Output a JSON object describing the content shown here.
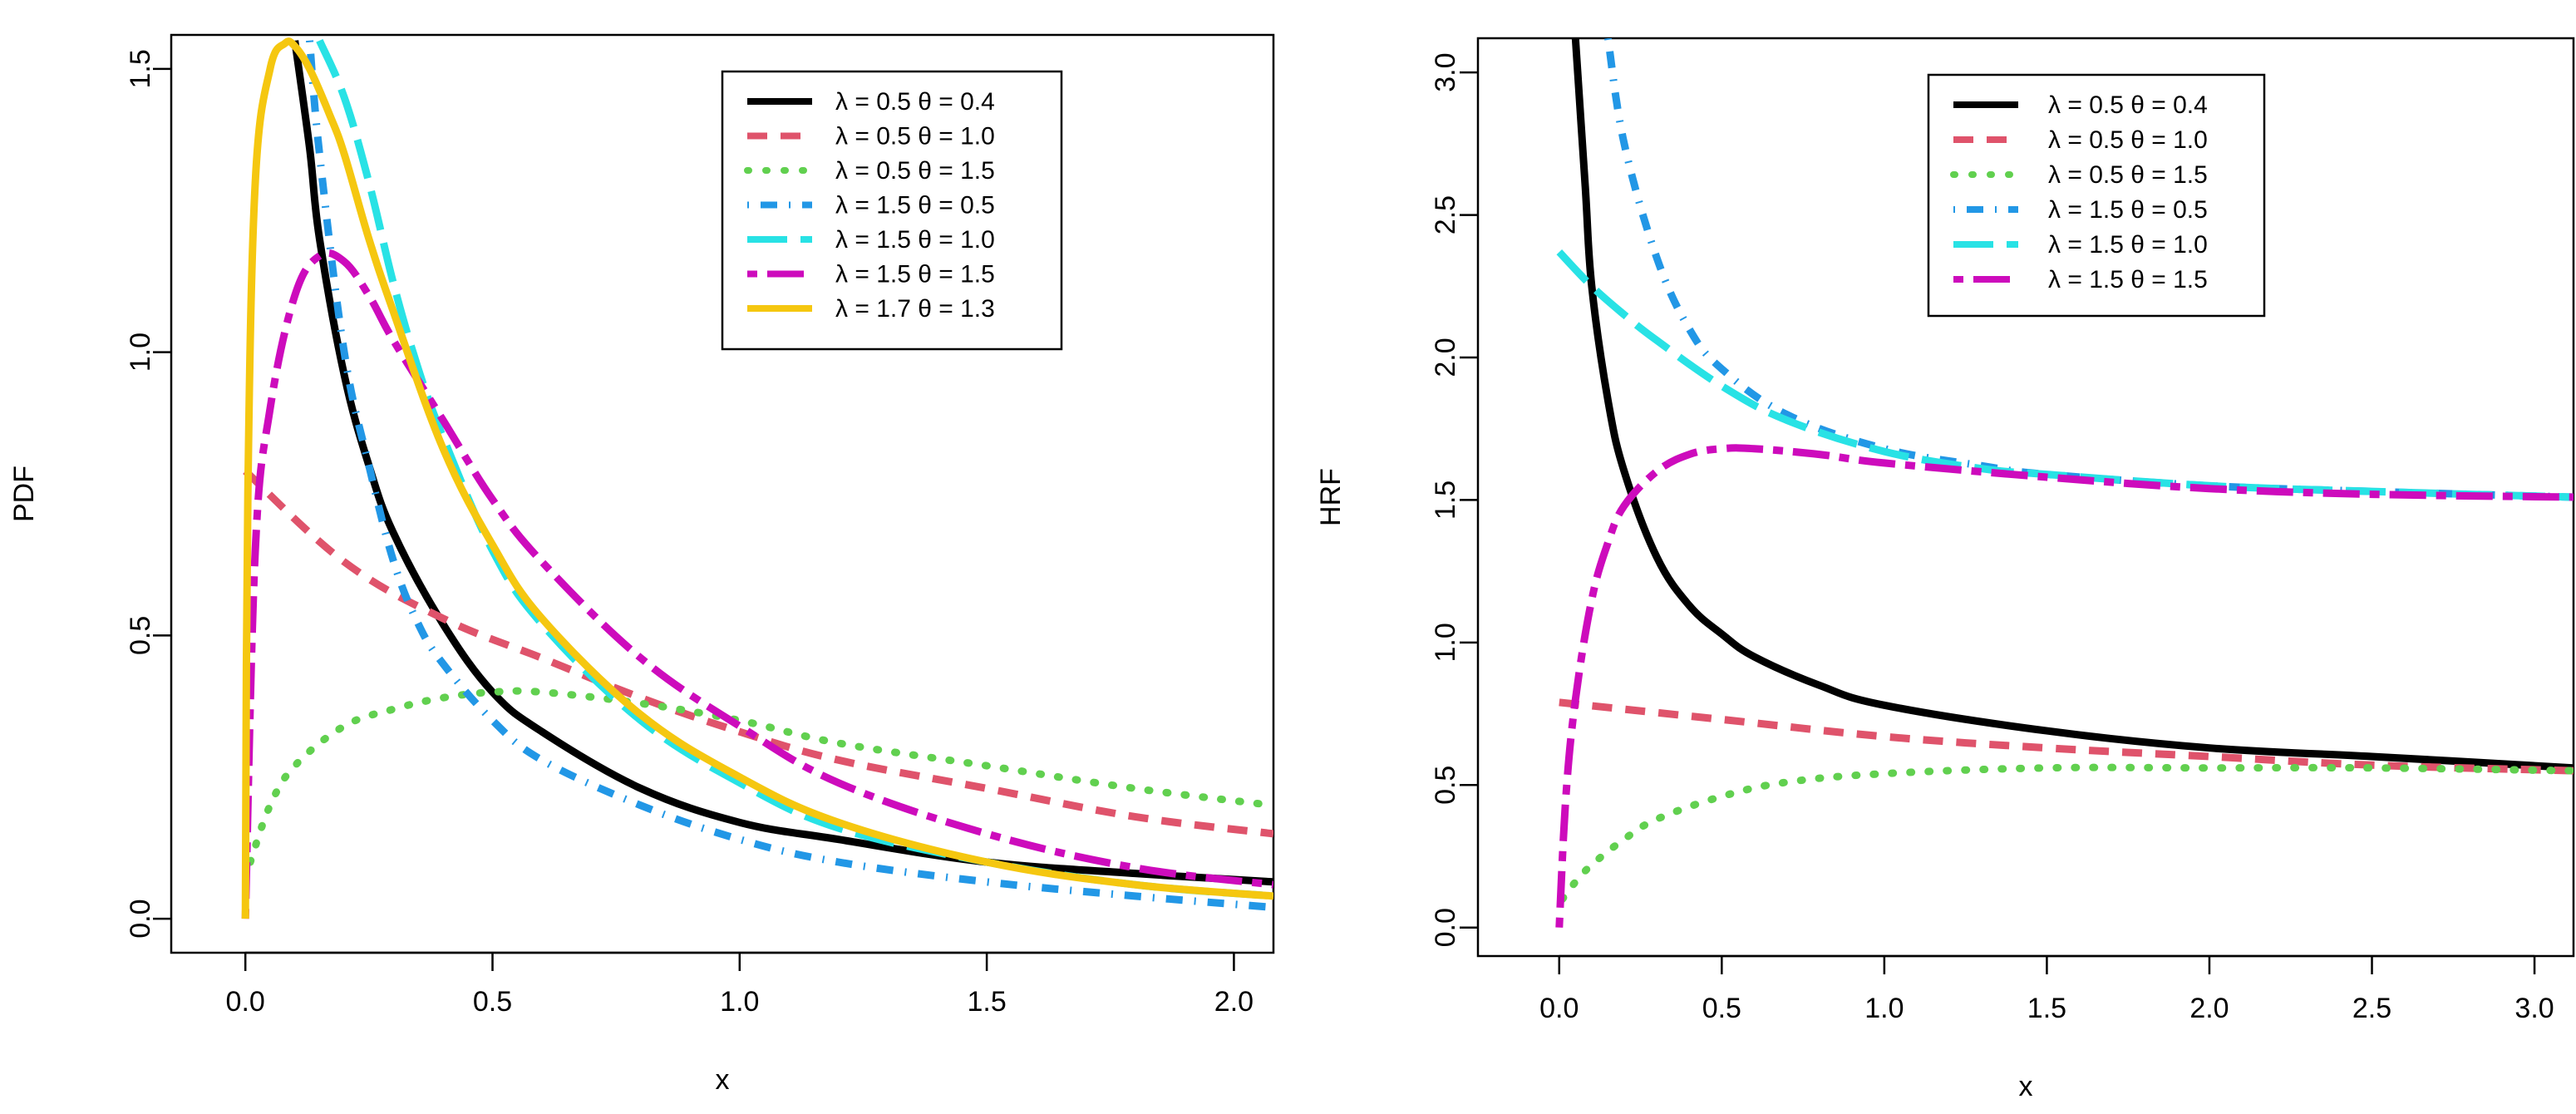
{
  "chart_data": [
    {
      "type": "line",
      "xlabel": "x",
      "ylabel": "PDF",
      "xlim": [
        -0.15,
        2.08
      ],
      "ylim": [
        -0.06,
        1.56
      ],
      "xticks": [
        "0.0",
        "0.5",
        "1.0",
        "1.5",
        "2.0"
      ],
      "xtick_values": [
        0,
        0.5,
        1.0,
        1.5,
        2.0
      ],
      "yticks": [
        "0.0",
        "0.5",
        "1.0",
        "1.5"
      ],
      "ytick_values": [
        0,
        0.5,
        1.0,
        1.5
      ],
      "legend_position": "top-right",
      "series": [
        {
          "name": "λ = 0.5  θ = 0.4",
          "color": "#000000",
          "dash": "solid",
          "x": [
            0.1,
            0.13,
            0.15,
            0.2,
            0.25,
            0.3,
            0.4,
            0.5,
            0.6,
            0.8,
            1.0,
            1.2,
            1.5,
            1.8,
            2.08
          ],
          "y": [
            1.55,
            1.36,
            1.2,
            0.96,
            0.8,
            0.68,
            0.52,
            0.4,
            0.33,
            0.23,
            0.17,
            0.14,
            0.1,
            0.08,
            0.065
          ]
        },
        {
          "name": "λ = 0.5  θ = 1.0",
          "color": "#DF536B",
          "dash": "dashed",
          "x": [
            0,
            0.2,
            0.4,
            0.6,
            0.8,
            1.0,
            1.2,
            1.5,
            1.8,
            2.08
          ],
          "y": [
            0.79,
            0.63,
            0.53,
            0.46,
            0.39,
            0.33,
            0.28,
            0.23,
            0.18,
            0.15
          ]
        },
        {
          "name": "λ = 0.5  θ = 1.5",
          "color": "#61D04F",
          "dash": "dotted",
          "x": [
            0.01,
            0.05,
            0.1,
            0.2,
            0.3,
            0.4,
            0.5,
            0.6,
            0.8,
            1.0,
            1.2,
            1.5,
            1.8,
            2.08
          ],
          "y": [
            0.1,
            0.2,
            0.27,
            0.34,
            0.37,
            0.39,
            0.4,
            0.4,
            0.38,
            0.35,
            0.31,
            0.27,
            0.23,
            0.2
          ]
        },
        {
          "name": "λ = 1.5  θ = 0.5",
          "color": "#2297E6",
          "dash": "dotdash",
          "x": [
            0.13,
            0.15,
            0.2,
            0.25,
            0.3,
            0.35,
            0.4,
            0.5,
            0.6,
            0.8,
            1.0,
            1.2,
            1.5,
            1.8,
            2.08
          ],
          "y": [
            1.55,
            1.35,
            1.0,
            0.8,
            0.63,
            0.52,
            0.45,
            0.35,
            0.28,
            0.2,
            0.14,
            0.1,
            0.065,
            0.04,
            0.02
          ]
        },
        {
          "name": "λ = 1.5  θ = 1.0",
          "color": "#28E2E5",
          "dash": "longdash",
          "x": [
            0.15,
            0.2,
            0.25,
            0.3,
            0.35,
            0.4,
            0.5,
            0.6,
            0.8,
            1.0,
            1.2,
            1.5,
            1.8,
            2.08
          ],
          "y": [
            1.55,
            1.45,
            1.3,
            1.12,
            0.97,
            0.85,
            0.65,
            0.52,
            0.35,
            0.24,
            0.16,
            0.1,
            0.06,
            0.04
          ]
        },
        {
          "name": "λ = 1.5  θ = 1.5",
          "color": "#CD0BBC",
          "dash": "twodash",
          "x": [
            0,
            0.02,
            0.05,
            0.1,
            0.15,
            0.2,
            0.25,
            0.3,
            0.4,
            0.5,
            0.6,
            0.8,
            1.0,
            1.2,
            1.5,
            1.8,
            2.08
          ],
          "y": [
            0.0,
            0.65,
            0.9,
            1.1,
            1.17,
            1.16,
            1.1,
            1.02,
            0.88,
            0.74,
            0.63,
            0.46,
            0.34,
            0.24,
            0.15,
            0.09,
            0.06
          ]
        },
        {
          "name": "λ = 1.7  θ = 1.3",
          "color": "#F5C710",
          "dash": "solid",
          "x": [
            0,
            0.005,
            0.02,
            0.05,
            0.08,
            0.1,
            0.13,
            0.17,
            0.2,
            0.25,
            0.3,
            0.4,
            0.5,
            0.6,
            0.8,
            1.0,
            1.2,
            1.5,
            1.8,
            2.08
          ],
          "y": [
            0.0,
            0.75,
            1.3,
            1.5,
            1.545,
            1.54,
            1.5,
            1.42,
            1.35,
            1.2,
            1.07,
            0.83,
            0.66,
            0.53,
            0.36,
            0.25,
            0.17,
            0.1,
            0.06,
            0.04
          ]
        }
      ]
    },
    {
      "type": "line",
      "xlabel": "x",
      "ylabel": "HRF",
      "xlim": [
        -0.25,
        3.12
      ],
      "ylim": [
        -0.1,
        3.12
      ],
      "xticks": [
        "0.0",
        "0.5",
        "1.0",
        "1.5",
        "2.0",
        "2.5",
        "3.0"
      ],
      "xtick_values": [
        0,
        0.5,
        1.0,
        1.5,
        2.0,
        2.5,
        3.0
      ],
      "yticks": [
        "0.0",
        "0.5",
        "1.0",
        "1.5",
        "2.0",
        "2.5",
        "3.0"
      ],
      "ytick_values": [
        0,
        0.5,
        1.0,
        1.5,
        2.0,
        2.5,
        3.0
      ],
      "legend_position": "top-right",
      "series": [
        {
          "name": "λ = 0.5  θ = 0.4",
          "color": "#000000",
          "dash": "solid",
          "x": [
            0.05,
            0.08,
            0.1,
            0.15,
            0.2,
            0.3,
            0.4,
            0.5,
            0.6,
            0.8,
            1.0,
            1.5,
            2.0,
            2.5,
            3.12
          ],
          "y": [
            3.12,
            2.6,
            2.25,
            1.85,
            1.6,
            1.3,
            1.13,
            1.03,
            0.95,
            0.85,
            0.78,
            0.69,
            0.63,
            0.6,
            0.56
          ]
        },
        {
          "name": "λ = 0.5  θ = 1.0",
          "color": "#DF536B",
          "dash": "dashed",
          "x": [
            0,
            0.5,
            1.0,
            1.5,
            2.0,
            2.5,
            3.12
          ],
          "y": [
            0.79,
            0.73,
            0.67,
            0.63,
            0.6,
            0.57,
            0.55
          ]
        },
        {
          "name": "λ = 0.5  θ = 1.5",
          "color": "#61D04F",
          "dash": "dotted",
          "x": [
            0.01,
            0.05,
            0.1,
            0.2,
            0.3,
            0.5,
            0.7,
            1.0,
            1.5,
            2.0,
            2.5,
            3.12
          ],
          "y": [
            0.1,
            0.16,
            0.22,
            0.31,
            0.38,
            0.46,
            0.51,
            0.54,
            0.56,
            0.56,
            0.56,
            0.55
          ]
        },
        {
          "name": "λ = 1.5  θ = 0.5",
          "color": "#2297E6",
          "dash": "dotdash",
          "x": [
            0.15,
            0.2,
            0.3,
            0.4,
            0.5,
            0.7,
            1.0,
            1.3,
            1.5,
            2.0,
            2.5,
            3.12
          ],
          "y": [
            3.12,
            2.75,
            2.35,
            2.1,
            1.96,
            1.8,
            1.68,
            1.62,
            1.59,
            1.55,
            1.53,
            1.51
          ]
        },
        {
          "name": "λ = 1.5  θ = 1.0",
          "color": "#28E2E5",
          "dash": "longdash",
          "x": [
            0,
            0.1,
            0.2,
            0.3,
            0.5,
            0.7,
            1.0,
            1.3,
            1.5,
            2.0,
            2.5,
            3.12
          ],
          "y": [
            2.37,
            2.25,
            2.15,
            2.06,
            1.9,
            1.78,
            1.67,
            1.61,
            1.59,
            1.55,
            1.53,
            1.51
          ]
        },
        {
          "name": "λ = 1.5  θ = 1.5",
          "color": "#CD0BBC",
          "dash": "twodash",
          "x": [
            0,
            0.02,
            0.05,
            0.1,
            0.15,
            0.2,
            0.3,
            0.4,
            0.5,
            0.6,
            0.8,
            1.0,
            1.5,
            2.0,
            2.5,
            3.12
          ],
          "y": [
            0.0,
            0.45,
            0.8,
            1.15,
            1.35,
            1.48,
            1.6,
            1.66,
            1.68,
            1.68,
            1.66,
            1.63,
            1.58,
            1.54,
            1.52,
            1.51
          ]
        }
      ]
    }
  ]
}
